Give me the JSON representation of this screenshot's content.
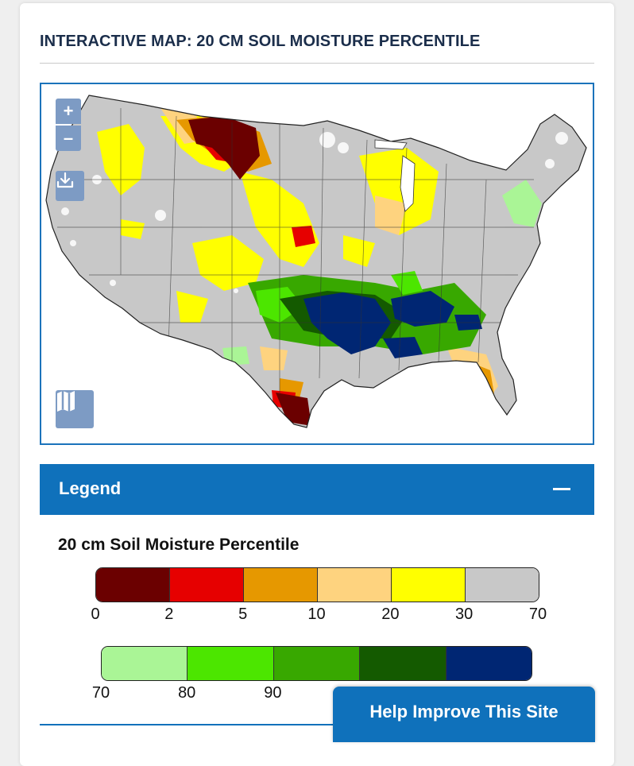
{
  "panel": {
    "title": "INTERACTIVE MAP: 20 CM SOIL MOISTURE PERCENTILE"
  },
  "map": {
    "region": "contiguous-united-states",
    "controls": {
      "zoom_in_label": "+",
      "zoom_out_label": "–",
      "download_icon": "download-icon",
      "basemap_icon": "map-icon"
    }
  },
  "legend": {
    "header_label": "Legend",
    "collapse_icon": "minus-icon",
    "scale_title": "20 cm Soil Moisture Percentile",
    "dry_classes": {
      "colors": [
        "#6b0000",
        "#e60000",
        "#e69800",
        "#fed37f",
        "#ffff00",
        "#c8c8c8"
      ],
      "ticks": [
        "0",
        "2",
        "5",
        "10",
        "20",
        "30",
        "70"
      ]
    },
    "wet_classes": {
      "colors": [
        "#aaf596",
        "#4ce600",
        "#38a800",
        "#145a00",
        "#002673"
      ],
      "ticks": [
        "70",
        "80",
        "90"
      ]
    }
  },
  "feedback": {
    "label": "Help Improve This Site"
  }
}
